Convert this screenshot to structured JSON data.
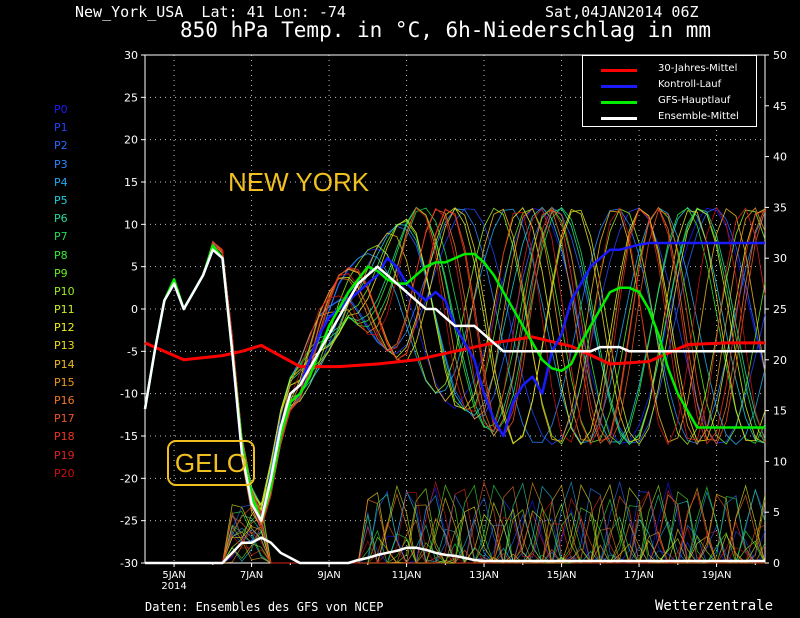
{
  "header": {
    "station": "New_York_USA  Lat: 41 Lon: -74",
    "datestamp": "Sat,04JAN2014 06Z",
    "title": "850 hPa Temp. in °C, 6h-Niederschlag in mm"
  },
  "footer": {
    "source": "Daten: Ensembles des GFS von NCEP",
    "brand": "Wetterzentrale"
  },
  "annotations": {
    "city": "NEW YORK",
    "frost": "GELO"
  },
  "members": [
    {
      "name": "P0",
      "color": "#1a1aff"
    },
    {
      "name": "P1",
      "color": "#2244ff"
    },
    {
      "name": "P2",
      "color": "#2a66ff"
    },
    {
      "name": "P3",
      "color": "#2a88ff"
    },
    {
      "name": "P4",
      "color": "#22aaee"
    },
    {
      "name": "P5",
      "color": "#22ccdd"
    },
    {
      "name": "P6",
      "color": "#22dd99"
    },
    {
      "name": "P7",
      "color": "#22dd55"
    },
    {
      "name": "P8",
      "color": "#33ee33"
    },
    {
      "name": "P9",
      "color": "#66ee22"
    },
    {
      "name": "P10",
      "color": "#99ee22"
    },
    {
      "name": "P11",
      "color": "#ccee22"
    },
    {
      "name": "P12",
      "color": "#eeee22"
    },
    {
      "name": "P13",
      "color": "#eedd22"
    },
    {
      "name": "P14",
      "color": "#eebb22"
    },
    {
      "name": "P15",
      "color": "#ee9922"
    },
    {
      "name": "P16",
      "color": "#ee7722"
    },
    {
      "name": "P17",
      "color": "#ee5522"
    },
    {
      "name": "P18",
      "color": "#ee3322"
    },
    {
      "name": "P19",
      "color": "#dd2222"
    },
    {
      "name": "P20",
      "color": "#cc1111"
    }
  ],
  "legend": [
    {
      "label": "30-Jahres-Mittel",
      "color": "#ff0000"
    },
    {
      "label": "Kontroll-Lauf",
      "color": "#1a1aff"
    },
    {
      "label": "GFS-Hauptlauf",
      "color": "#00ee00"
    },
    {
      "label": "Ensemble-Mittel",
      "color": "#ffffff"
    }
  ],
  "chart_data": {
    "type": "line",
    "title": "850 hPa Temp. in °C, 6h-Niederschlag in mm",
    "x_ticks": [
      "5JAN",
      "7JAN",
      "9JAN",
      "11JAN",
      "13JAN",
      "15JAN",
      "17JAN",
      "19JAN"
    ],
    "x_year_label": "2014",
    "x_range_days": [
      4.25,
      20.25
    ],
    "y_left": {
      "label": "°C",
      "range": [
        -30,
        30
      ],
      "ticks": [
        -30,
        -25,
        -20,
        -15,
        -10,
        -5,
        0,
        5,
        10,
        15,
        20,
        25,
        30
      ]
    },
    "y_right": {
      "label": "mm",
      "range": [
        0,
        50
      ],
      "ticks": [
        0,
        5,
        10,
        15,
        20,
        25,
        30,
        35,
        40,
        45,
        50
      ]
    },
    "grid": true,
    "legend_position": "top-right",
    "series": [
      {
        "name": "30-Jahres-Mittel",
        "color": "#ff0000",
        "axis": "left",
        "x": [
          4.25,
          5.25,
          6.25,
          6.75,
          7.25,
          8.25,
          9.25,
          10.25,
          11.25,
          12.25,
          13.25,
          14.25,
          15.25,
          16.25,
          17.25,
          18.25,
          19.25,
          20.25
        ],
        "y": [
          -4,
          -6,
          -5.5,
          -5,
          -4.3,
          -6.8,
          -6.8,
          -6.5,
          -6,
          -5,
          -4,
          -3.3,
          -4.4,
          -6.5,
          -6.2,
          -4.2,
          -4,
          -4
        ]
      },
      {
        "name": "Kontroll-Lauf",
        "color": "#1a1aff",
        "axis": "left",
        "x": [
          4.25,
          4.5,
          4.75,
          5,
          5.25,
          5.5,
          5.75,
          6,
          6.25,
          6.5,
          6.75,
          7,
          7.25,
          7.5,
          7.75,
          8,
          8.25,
          8.5,
          8.75,
          9,
          9.25,
          9.5,
          9.75,
          10,
          10.25,
          10.5,
          10.75,
          11,
          11.25,
          11.5,
          11.75,
          12,
          12.25,
          12.5,
          12.75,
          13,
          13.25,
          13.5,
          13.75,
          14,
          14.25,
          14.5,
          14.75,
          15,
          15.25,
          15.5,
          15.75,
          16,
          16.25,
          16.5,
          16.75,
          17,
          17.25,
          17.5,
          17.75,
          18,
          18.25,
          18.5,
          18.75,
          19,
          19.25,
          19.5,
          19.75,
          20,
          20.25
        ],
        "y": [
          -11.8,
          -5,
          1,
          3,
          0,
          2,
          4,
          7,
          6,
          -5,
          -17,
          -23,
          -25,
          -20,
          -14,
          -10,
          -9,
          -6,
          -3,
          -1,
          0,
          1,
          2,
          3,
          4,
          6,
          5,
          3,
          2,
          1,
          2,
          1,
          -2,
          -4,
          -6,
          -10,
          -13,
          -15,
          -11,
          -9,
          -8,
          -10,
          -5,
          -3,
          1,
          3,
          5,
          6,
          7,
          7,
          7.3,
          7.6,
          7.8,
          7.8,
          7.8,
          7.8,
          7.8,
          7.8,
          7.8,
          7.8,
          7.8,
          7.8,
          7.8,
          7.8,
          7.8
        ]
      },
      {
        "name": "GFS-Hauptlauf",
        "color": "#00ee00",
        "axis": "left",
        "x": [
          4.25,
          4.5,
          4.75,
          5,
          5.25,
          5.5,
          5.75,
          6,
          6.25,
          6.5,
          6.75,
          7,
          7.25,
          7.5,
          7.75,
          8,
          8.25,
          8.5,
          8.75,
          9,
          9.25,
          9.5,
          9.75,
          10,
          10.25,
          10.5,
          10.75,
          11,
          11.25,
          11.5,
          11.75,
          12,
          12.25,
          12.5,
          12.75,
          13,
          13.25,
          13.5,
          13.75,
          14,
          14.25,
          14.5,
          14.75,
          15,
          15.25,
          15.5,
          15.75,
          16,
          16.25,
          16.5,
          16.75,
          17,
          17.25,
          17.5,
          17.75,
          18,
          18.25,
          18.5,
          18.75,
          19,
          19.25,
          19.5,
          19.75,
          20,
          20.25
        ],
        "y": [
          -11.8,
          -5,
          1,
          3.5,
          0,
          2,
          4,
          7.5,
          6,
          -5,
          -16,
          -22,
          -25,
          -21,
          -15,
          -11,
          -10,
          -8,
          -5,
          -2,
          0,
          2,
          3.5,
          5,
          4.5,
          3.5,
          3,
          3,
          4,
          5,
          5.5,
          5.5,
          6,
          6.5,
          6.5,
          5.5,
          4,
          2,
          0,
          -2,
          -4,
          -6,
          -7,
          -7.3,
          -6.5,
          -4,
          -2,
          0,
          2,
          2.5,
          2.5,
          2,
          0,
          -3,
          -7,
          -10,
          -12,
          -14,
          -14,
          -14,
          -14,
          -14,
          -14,
          -14,
          -14
        ]
      },
      {
        "name": "Ensemble-Mittel",
        "color": "#ffffff",
        "axis": "left",
        "x": [
          4.25,
          4.5,
          4.75,
          5,
          5.25,
          5.5,
          5.75,
          6,
          6.25,
          6.5,
          6.75,
          7,
          7.25,
          7.5,
          7.75,
          8,
          8.25,
          8.5,
          8.75,
          9,
          9.25,
          9.5,
          9.75,
          10,
          10.25,
          10.5,
          10.75,
          11,
          11.25,
          11.5,
          11.75,
          12,
          12.25,
          12.5,
          12.75,
          13,
          13.25,
          13.5,
          13.75,
          14,
          14.25,
          14.5,
          14.75,
          15,
          15.25,
          15.5,
          15.75,
          16,
          16.25,
          16.5,
          16.75,
          17,
          17.25,
          17.5,
          17.75,
          18,
          18.25,
          18.5,
          18.75,
          19,
          19.25,
          19.5,
          19.75,
          20,
          20.25
        ],
        "y": [
          -11.8,
          -5,
          1,
          3,
          0,
          2,
          4,
          7,
          6,
          -5,
          -17,
          -23,
          -25,
          -20,
          -14,
          -10,
          -9,
          -7,
          -5,
          -3,
          -1,
          1,
          3,
          4,
          5,
          4,
          3,
          2,
          1,
          0,
          0,
          -1,
          -2,
          -2,
          -2,
          -3,
          -4,
          -5,
          -5,
          -5,
          -5,
          -5,
          -5,
          -5,
          -5,
          -5,
          -5,
          -4.5,
          -4.5,
          -4.5,
          -5,
          -5,
          -5,
          -5,
          -5,
          -5,
          -5,
          -5,
          -5,
          -5,
          -5,
          -5,
          -5,
          -5,
          -5
        ]
      },
      {
        "name": "Ensemble-Mittel Niederschlag",
        "color": "#ffffff",
        "axis": "right",
        "x": [
          4.25,
          4.5,
          4.75,
          5,
          5.25,
          5.5,
          5.75,
          6,
          6.25,
          6.5,
          6.75,
          7,
          7.25,
          7.5,
          7.75,
          8,
          8.25,
          8.5,
          8.75,
          9,
          9.25,
          9.5,
          9.75,
          10,
          10.25,
          10.5,
          10.75,
          11,
          11.25,
          11.5,
          11.75,
          12,
          12.25,
          12.5,
          12.75,
          13,
          13.25,
          13.5,
          13.75,
          14,
          14.25,
          14.5,
          14.75,
          15,
          15.25,
          15.5,
          15.75,
          16,
          16.25,
          16.5,
          16.75,
          17,
          17.25,
          17.5,
          17.75,
          18,
          18.25,
          18.5,
          18.75,
          19,
          19.25,
          19.5,
          19.75,
          20,
          20.25
        ],
        "y": [
          0,
          0,
          0,
          0,
          0,
          0,
          0,
          0,
          0,
          1,
          2,
          2,
          2.5,
          2,
          1,
          0.5,
          0,
          0,
          0,
          0,
          0,
          0,
          0.3,
          0.5,
          0.8,
          1,
          1.2,
          1.5,
          1.5,
          1.3,
          1,
          0.8,
          0.7,
          0.5,
          0.3,
          0.2,
          0.2,
          0.2,
          0.2,
          0.2,
          0.2,
          0.2,
          0.2,
          0.2,
          0.2,
          0.2,
          0.2,
          0.2,
          0.2,
          0.2,
          0.2,
          0.2,
          0.2,
          0.2,
          0.2,
          0.2,
          0.2,
          0.2,
          0.2,
          0.2,
          0.2,
          0.2,
          0.2,
          0.2,
          0.2
        ]
      }
    ],
    "ensemble_member_summary": {
      "axis": "left",
      "x": [
        4.25,
        4.5,
        4.75,
        5,
        5.25,
        5.5,
        5.75,
        6,
        6.25,
        6.5,
        6.75,
        7,
        7.25,
        7.5,
        7.75,
        8,
        8.25,
        8.5,
        8.75,
        9,
        9.25,
        9.5,
        9.75,
        10,
        10.25,
        10.5,
        10.75,
        11,
        11.25,
        11.5,
        11.75,
        12,
        12.25,
        12.5,
        12.75,
        13,
        13.25,
        13.5,
        13.75,
        14,
        14.25,
        14.5,
        14.75,
        15,
        15.25,
        15.5,
        15.75,
        16,
        16.25,
        16.5,
        16.75,
        17,
        17.25,
        17.5,
        17.75,
        18,
        18.25,
        18.5,
        18.75,
        19,
        19.25,
        19.5,
        19.75,
        20,
        20.25
      ],
      "y_min": [
        -11.8,
        -5,
        1,
        3,
        0,
        2,
        4,
        7,
        6,
        -6,
        -18,
        -24,
        -26,
        -22,
        -16,
        -12,
        -11,
        -9,
        -7,
        -5,
        -3,
        -1,
        -2,
        -3,
        -4,
        -5,
        -6,
        -7,
        -8,
        -9,
        -10,
        -11,
        -12,
        -12,
        -13,
        -14,
        -15,
        -15,
        -16,
        -16,
        -16,
        -16,
        -16,
        -16,
        -16,
        -16,
        -16,
        -16,
        -16,
        -16,
        -16,
        -16,
        -16,
        -16,
        -16,
        -16,
        -16,
        -16,
        -16,
        -16,
        -16,
        -16,
        -16,
        -16,
        -16
      ],
      "y_max": [
        -11.8,
        -5,
        1,
        3,
        0,
        2,
        4,
        8,
        7,
        -3,
        -15,
        -21,
        -23,
        -18,
        -12,
        -8,
        -6,
        -3,
        0,
        2,
        4,
        5,
        6,
        7,
        8,
        9,
        10,
        11,
        12,
        12,
        12,
        12,
        12,
        12,
        12,
        12,
        12,
        12,
        12,
        12,
        12,
        12,
        12,
        12,
        12,
        12,
        12,
        12,
        12,
        12,
        12,
        12,
        12,
        12,
        12,
        12,
        12,
        12,
        12,
        12,
        12,
        12,
        12,
        12,
        12
      ]
    }
  }
}
